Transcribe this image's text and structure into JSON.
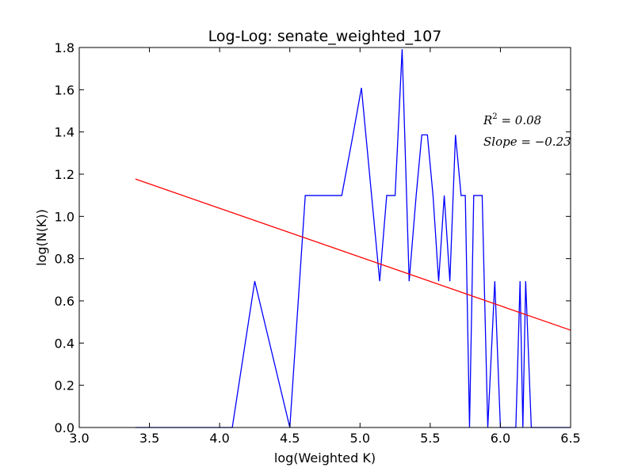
{
  "chart_data": {
    "type": "line",
    "title": "Log-Log: senate_weighted_107",
    "xlabel": "log(Weighted K)",
    "ylabel": "log(N(K))",
    "xlim": [
      3.0,
      6.5
    ],
    "ylim": [
      0.0,
      1.8
    ],
    "x_ticks": [
      3.0,
      3.5,
      4.0,
      4.5,
      5.0,
      5.5,
      6.0,
      6.5
    ],
    "y_ticks": [
      0.0,
      0.2,
      0.4,
      0.6,
      0.8,
      1.0,
      1.2,
      1.4,
      1.6,
      1.8
    ],
    "x_tick_labels": [
      "3.0",
      "3.5",
      "4.0",
      "4.5",
      "5.0",
      "5.5",
      "6.0",
      "6.5"
    ],
    "y_tick_labels": [
      "0.0",
      "0.2",
      "0.4",
      "0.6",
      "0.8",
      "1.0",
      "1.2",
      "1.4",
      "1.6",
      "1.8"
    ],
    "grid": false,
    "series": [
      {
        "color": "#0000ff",
        "points": [
          [
            3.4,
            0.0
          ],
          [
            4.09,
            0.0
          ],
          [
            4.25,
            0.693
          ],
          [
            4.5,
            0.0
          ],
          [
            4.61,
            1.099
          ],
          [
            4.87,
            1.099
          ],
          [
            4.95,
            1.386
          ],
          [
            5.01,
            1.609
          ],
          [
            5.14,
            0.693
          ],
          [
            5.19,
            1.099
          ],
          [
            5.25,
            1.099
          ],
          [
            5.3,
            1.792
          ],
          [
            5.35,
            0.693
          ],
          [
            5.4,
            1.099
          ],
          [
            5.44,
            1.386
          ],
          [
            5.48,
            1.386
          ],
          [
            5.52,
            1.099
          ],
          [
            5.56,
            0.693
          ],
          [
            5.6,
            1.099
          ],
          [
            5.64,
            0.693
          ],
          [
            5.68,
            1.386
          ],
          [
            5.72,
            1.099
          ],
          [
            5.75,
            1.099
          ],
          [
            5.78,
            0.0
          ],
          [
            5.81,
            1.099
          ],
          [
            5.87,
            1.099
          ],
          [
            5.91,
            0.0
          ],
          [
            5.96,
            0.693
          ],
          [
            6.0,
            0.0
          ],
          [
            6.11,
            0.0
          ],
          [
            6.14,
            0.693
          ],
          [
            6.16,
            0.0
          ],
          [
            6.18,
            0.693
          ],
          [
            6.22,
            0.0
          ],
          [
            6.5,
            0.0
          ]
        ]
      },
      {
        "color": "#ff0000",
        "points": [
          [
            3.4,
            1.177
          ],
          [
            6.5,
            0.461
          ]
        ]
      }
    ],
    "annotations": {
      "r2_base": "R",
      "r2_sup": "2",
      "r2_rest": " = 0.08",
      "slope": "Slope = −0.23"
    }
  }
}
